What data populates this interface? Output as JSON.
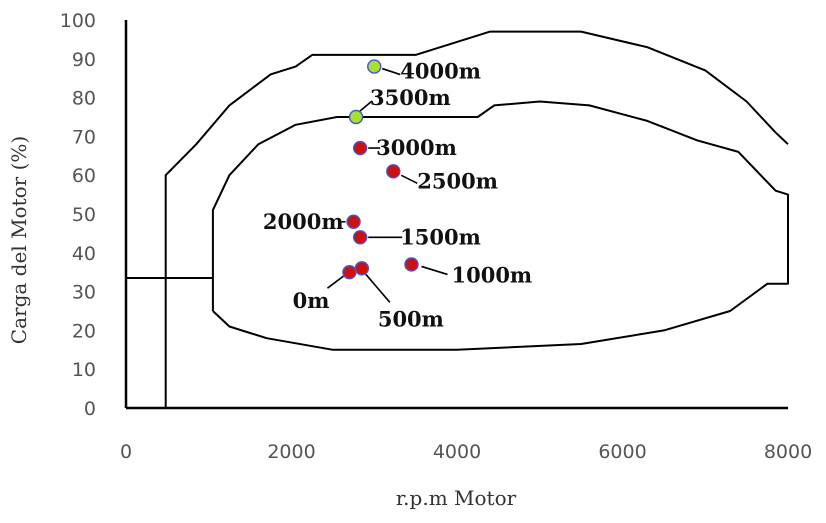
{
  "chart_data": {
    "type": "scatter",
    "title": "",
    "xlabel": "r.p.m Motor",
    "ylabel": "Carga del Motor (%)",
    "xlim": [
      0,
      8000
    ],
    "ylim": [
      0,
      100
    ],
    "xticks": [
      "0",
      "2000",
      "4000",
      "6000",
      "8000"
    ],
    "yticks": [
      "0",
      "10",
      "20",
      "30",
      "40",
      "50",
      "60",
      "70",
      "80",
      "90",
      "100"
    ],
    "grid": false,
    "legend": "none",
    "colors": {
      "red_marker": "#cc1111",
      "green_marker": "#a8e030",
      "line": "#000000",
      "marker_edge": "#4455cc"
    },
    "points": [
      {
        "label": "4000m",
        "x": 3000,
        "y": 88,
        "color": "green"
      },
      {
        "label": "3500m",
        "x": 2780,
        "y": 75,
        "color": "green"
      },
      {
        "label": "3000m",
        "x": 2830,
        "y": 67,
        "color": "red"
      },
      {
        "label": "2500m",
        "x": 3230,
        "y": 61,
        "color": "red"
      },
      {
        "label": "2000m",
        "x": 2750,
        "y": 48,
        "color": "red"
      },
      {
        "label": "1500m",
        "x": 2830,
        "y": 44,
        "color": "red"
      },
      {
        "label": "1000m",
        "x": 3450,
        "y": 37,
        "color": "red"
      },
      {
        "label": "500m",
        "x": 2850,
        "y": 36,
        "color": "red"
      },
      {
        "label": "0m",
        "x": 2700,
        "y": 35,
        "color": "red"
      }
    ],
    "outer_envelope": [
      [
        480,
        0
      ],
      [
        480,
        60
      ],
      [
        850,
        68
      ],
      [
        1250,
        78
      ],
      [
        1750,
        86
      ],
      [
        2050,
        88
      ],
      [
        2250,
        91
      ],
      [
        3500,
        91
      ],
      [
        4400,
        97
      ],
      [
        5500,
        97
      ],
      [
        6300,
        93
      ],
      [
        7000,
        87
      ],
      [
        7500,
        79
      ],
      [
        7850,
        71
      ],
      [
        8000,
        68
      ]
    ],
    "inner_envelope": [
      [
        1050,
        25
      ],
      [
        1050,
        51
      ],
      [
        1250,
        60
      ],
      [
        1600,
        68
      ],
      [
        2050,
        73
      ],
      [
        2550,
        75
      ],
      [
        4250,
        75
      ],
      [
        4450,
        78
      ],
      [
        5000,
        79
      ],
      [
        5600,
        78
      ],
      [
        6300,
        74
      ],
      [
        6900,
        69
      ],
      [
        7400,
        66
      ],
      [
        7850,
        56
      ],
      [
        8000,
        55
      ],
      [
        8000,
        32
      ],
      [
        7750,
        32
      ],
      [
        7300,
        25
      ],
      [
        6500,
        20
      ],
      [
        5500,
        16.5
      ],
      [
        4000,
        15
      ],
      [
        2500,
        15
      ],
      [
        1700,
        18
      ],
      [
        1250,
        21
      ],
      [
        1050,
        25
      ]
    ],
    "stub_line": [
      [
        0,
        33.5
      ],
      [
        1050,
        33.5
      ]
    ]
  }
}
